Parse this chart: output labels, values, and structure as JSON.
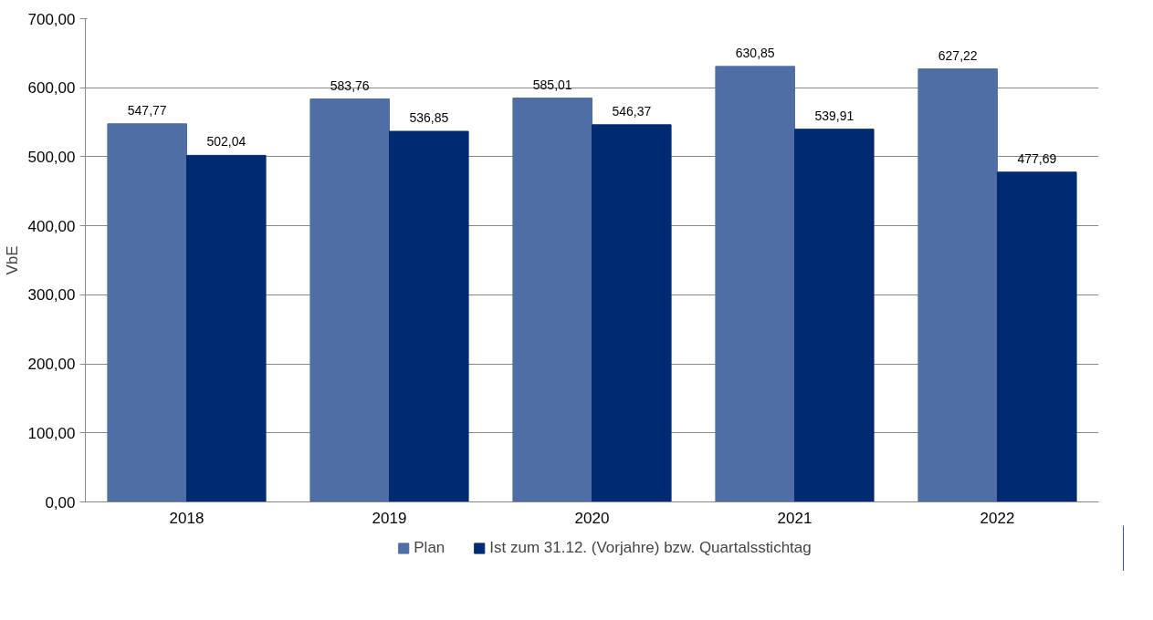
{
  "chart_data": {
    "type": "bar",
    "ylabel": "VbE",
    "categories": [
      "2018",
      "2019",
      "2020",
      "2021",
      "2022"
    ],
    "series": [
      {
        "name": "Plan",
        "color": "#4f6ea5",
        "values": [
          547.77,
          583.76,
          585.01,
          630.85,
          627.22
        ],
        "value_labels": [
          "547,77",
          "583,76",
          "585,01",
          "630,85",
          "627,22"
        ]
      },
      {
        "name": "Ist zum 31.12. (Vorjahre) bzw. Quartalsstichtag",
        "color": "#002b72",
        "values": [
          502.04,
          536.85,
          546.37,
          539.91,
          477.69
        ],
        "value_labels": [
          "502,04",
          "536,85",
          "546,37",
          "539,91",
          "477,69"
        ]
      }
    ],
    "ylim": [
      0,
      700
    ],
    "yticks": [
      {
        "value": 0,
        "label": "0,00"
      },
      {
        "value": 100,
        "label": "100,00"
      },
      {
        "value": 200,
        "label": "200,00"
      },
      {
        "value": 300,
        "label": "300,00"
      },
      {
        "value": 400,
        "label": "400,00"
      },
      {
        "value": 500,
        "label": "500,00"
      },
      {
        "value": 600,
        "label": "600,00"
      },
      {
        "value": 700,
        "label": "700,00"
      }
    ],
    "grid": "y",
    "legend": "bottom"
  }
}
